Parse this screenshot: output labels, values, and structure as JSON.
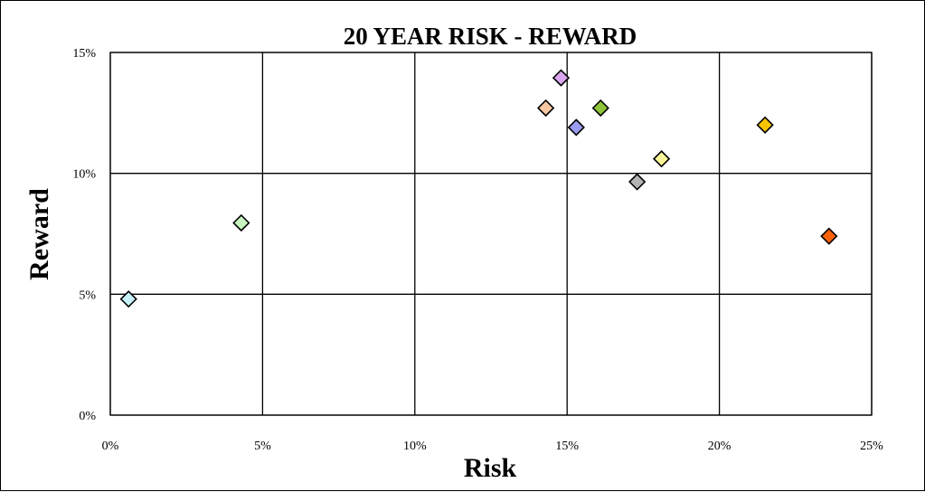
{
  "chart_data": {
    "type": "scatter",
    "title": "20 YEAR RISK - REWARD",
    "xlabel": "Risk",
    "ylabel": "Reward",
    "xlim": [
      0,
      25
    ],
    "ylim": [
      0,
      15
    ],
    "xticks": [
      0,
      5,
      10,
      15,
      20,
      25
    ],
    "yticks": [
      0,
      5,
      10,
      15
    ],
    "xtick_labels": [
      "0%",
      "5%",
      "10%",
      "15%",
      "20%",
      "25%"
    ],
    "ytick_labels": [
      "0%",
      "5%",
      "10%",
      "15%"
    ],
    "grid": true,
    "marker": "diamond",
    "points": [
      {
        "x": 0.6,
        "y": 4.8,
        "color": "#c6f2f7"
      },
      {
        "x": 4.3,
        "y": 7.95,
        "color": "#c8f5c0"
      },
      {
        "x": 14.3,
        "y": 12.7,
        "color": "#f9c8a2"
      },
      {
        "x": 14.8,
        "y": 13.95,
        "color": "#d9a6ef"
      },
      {
        "x": 15.3,
        "y": 11.9,
        "color": "#9a9cf0"
      },
      {
        "x": 16.1,
        "y": 12.7,
        "color": "#8fc43a"
      },
      {
        "x": 17.3,
        "y": 9.65,
        "color": "#b3b3b3"
      },
      {
        "x": 18.1,
        "y": 10.6,
        "color": "#fbf59a"
      },
      {
        "x": 21.5,
        "y": 12.0,
        "color": "#f8c400"
      },
      {
        "x": 23.6,
        "y": 7.4,
        "color": "#f6620a"
      }
    ]
  }
}
